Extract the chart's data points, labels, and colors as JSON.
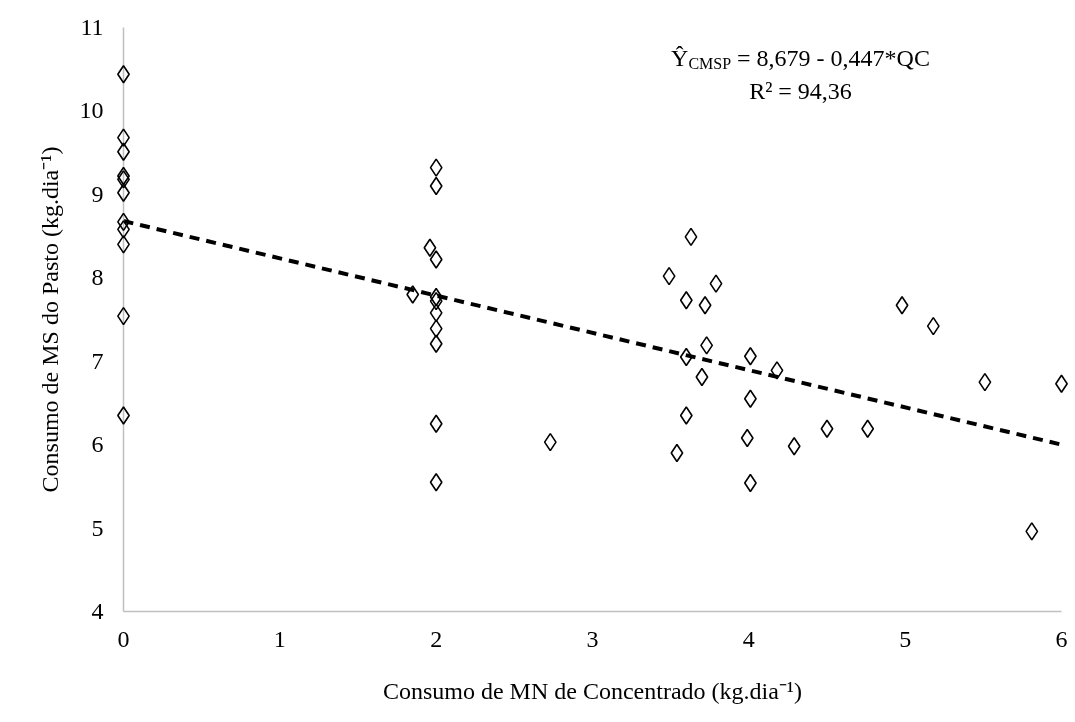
{
  "chart_data": {
    "type": "scatter",
    "xlabel": "Consumo de MN de Concentrado (kg.dia⁻¹)",
    "ylabel": "Consumo de MS do Pasto (kg.dia⁻¹)",
    "annotations": [
      "Ŷ$_{CMSP}$ = 8,679 - 0,447*QC",
      "R² = 94,36"
    ],
    "xlim": [
      0,
      6
    ],
    "ylim": [
      4,
      11
    ],
    "xticks": [
      0,
      1,
      2,
      3,
      4,
      5,
      6
    ],
    "yticks": [
      4,
      5,
      6,
      7,
      8,
      9,
      10,
      11
    ],
    "grid": false,
    "series": [
      {
        "marker": "diamond",
        "color": "#000000",
        "x": [
          0,
          0,
          0,
          0,
          0,
          0,
          0,
          0,
          0,
          0,
          0,
          2,
          2,
          2,
          2,
          2,
          2,
          2,
          2,
          2,
          2,
          1.96,
          1.85,
          2.73,
          3.63,
          3.49,
          3.79,
          3.6,
          3.72,
          3.73,
          3.6,
          3.7,
          3.6,
          3.54,
          4.01,
          4.01,
          3.99,
          4.01,
          4.18,
          4.29,
          4.5,
          4.76,
          4.98,
          5.18,
          5.51,
          6,
          5.81
        ],
        "values": [
          10.44,
          9.68,
          9.51,
          9.22,
          9.18,
          9.02,
          8.67,
          8.58,
          8.4,
          7.54,
          6.35,
          9.32,
          9.1,
          8.22,
          7.77,
          7.72,
          7.58,
          7.39,
          7.21,
          6.25,
          5.55,
          8.36,
          7.8,
          6.03,
          8.49,
          8.02,
          7.93,
          7.73,
          7.67,
          7.19,
          7.05,
          6.81,
          6.35,
          5.9,
          7.06,
          6.55,
          6.08,
          5.54,
          6.89,
          5.98,
          6.19,
          6.19,
          7.67,
          7.42,
          6.75,
          6.73,
          4.96
        ]
      },
      {
        "type": "line",
        "line_style": "dashed",
        "color": "#000000",
        "x": [
          0,
          6
        ],
        "values": [
          8.68,
          6.0
        ]
      }
    ]
  }
}
